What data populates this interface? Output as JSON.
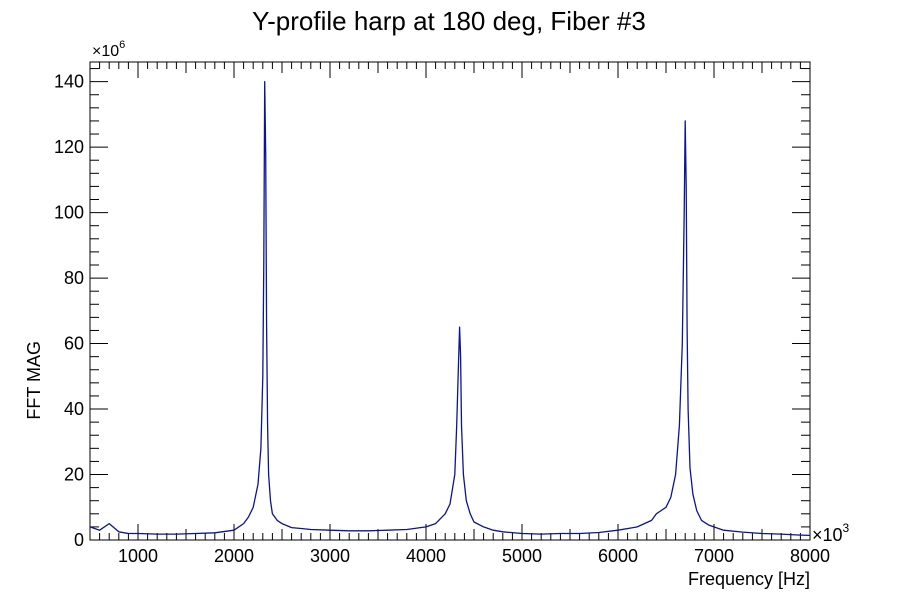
{
  "chart_data": {
    "type": "line",
    "title": "Y-profile harp at 180 deg, Fiber #3",
    "xlabel": "Frequency [Hz]",
    "ylabel": "FFT MAG",
    "x_multiplier_label": "×10",
    "x_multiplier_exp": "3",
    "y_multiplier_label": "×10",
    "y_multiplier_exp": "6",
    "xlim": [
      500,
      8000
    ],
    "ylim": [
      0,
      146
    ],
    "x_ticks": [
      1000,
      2000,
      3000,
      4000,
      5000,
      6000,
      7000,
      8000
    ],
    "x_tick_labels": [
      "1000",
      "2000",
      "3000",
      "4000",
      "5000",
      "6000",
      "7000",
      "8000"
    ],
    "y_ticks": [
      0,
      20,
      40,
      60,
      80,
      100,
      120,
      140
    ],
    "y_tick_labels": [
      "0",
      "20",
      "40",
      "60",
      "80",
      "100",
      "120",
      "140"
    ],
    "grid": false,
    "legend": "none",
    "line_color": "#0a1496",
    "series": [
      {
        "x": [
          500,
          600,
          700,
          800,
          900,
          1000,
          1200,
          1400,
          1600,
          1800,
          2000,
          2100,
          2150,
          2200,
          2250,
          2280,
          2300,
          2310,
          2320,
          2330,
          2340,
          2350,
          2360,
          2380,
          2400,
          2450,
          2500,
          2600,
          2700,
          2800,
          3000,
          3200,
          3400,
          3600,
          3800,
          4000,
          4100,
          4200,
          4250,
          4300,
          4320,
          4340,
          4350,
          4360,
          4370,
          4390,
          4420,
          4460,
          4500,
          4600,
          4700,
          4800,
          5000,
          5200,
          5400,
          5600,
          5800,
          6000,
          6200,
          6350,
          6400,
          6450,
          6500,
          6550,
          6600,
          6640,
          6670,
          6690,
          6700,
          6710,
          6720,
          6730,
          6750,
          6780,
          6820,
          6870,
          6950,
          7100,
          7300,
          7500,
          7700,
          7900,
          8000
        ],
        "values": [
          4,
          3,
          5,
          2.5,
          2,
          2,
          1.8,
          1.8,
          2,
          2.2,
          3,
          5,
          7,
          10,
          17,
          28,
          50,
          85,
          140,
          118,
          65,
          35,
          20,
          12,
          8,
          6,
          5,
          3.8,
          3.5,
          3.2,
          3,
          2.8,
          2.8,
          3,
          3.2,
          4,
          5,
          8,
          11,
          20,
          35,
          55,
          65,
          56,
          35,
          20,
          12,
          8,
          5.5,
          4,
          3,
          2.5,
          2,
          1.8,
          2,
          2,
          2.3,
          3,
          4,
          6,
          8,
          9,
          10,
          13,
          20,
          35,
          60,
          100,
          128,
          108,
          65,
          40,
          22,
          14,
          9,
          6,
          4.5,
          3,
          2.4,
          2,
          1.8,
          1.5,
          1.4
        ]
      }
    ]
  }
}
